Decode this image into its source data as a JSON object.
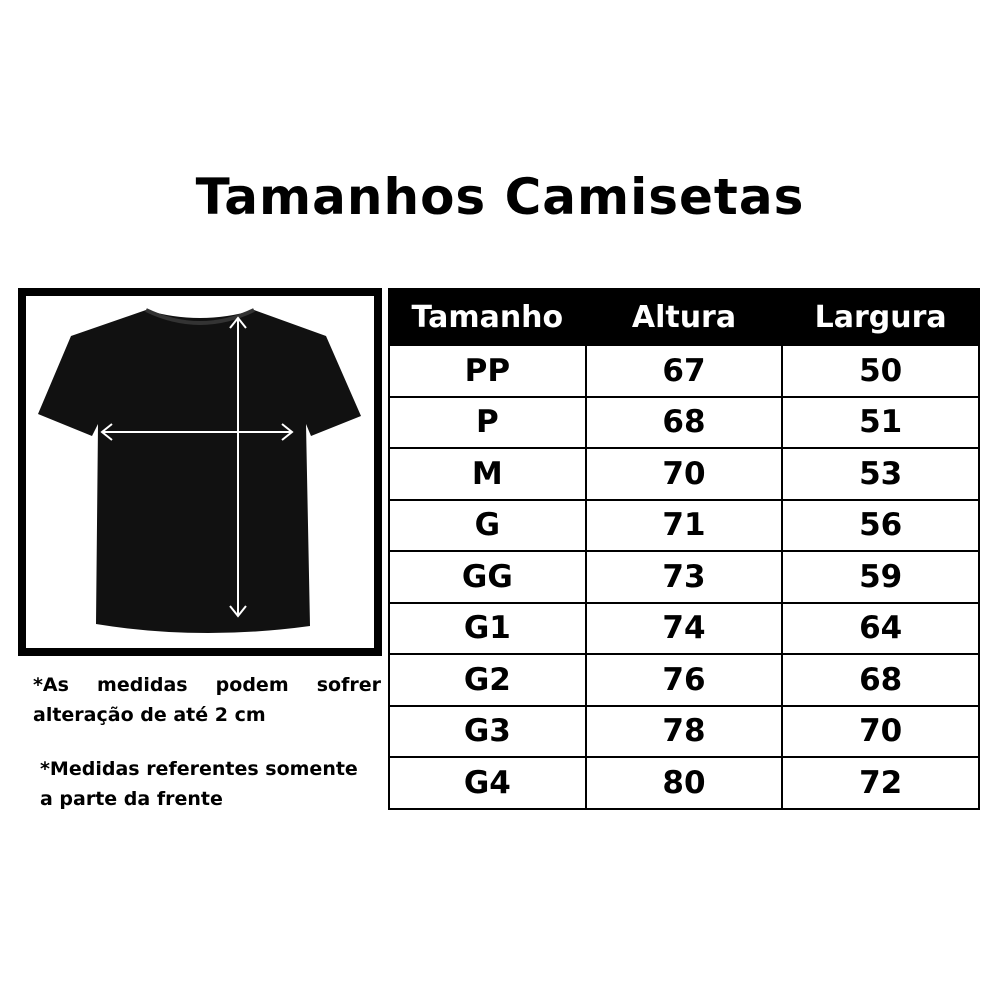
{
  "title": "Tamanhos Camisetas",
  "notes": {
    "note1_line1": [
      "*As",
      "medidas",
      "podem",
      "sofrer"
    ],
    "note1_line2": "alteração de até 2 cm",
    "note2_line1": "*Medidas referentes somente",
    "note2_line2": "a parte da frente"
  },
  "table": {
    "headers": [
      "Tamanho",
      "Altura",
      "Largura"
    ],
    "rows": [
      [
        "PP",
        "67",
        "50"
      ],
      [
        "P",
        "68",
        "51"
      ],
      [
        "M",
        "70",
        "53"
      ],
      [
        "G",
        "71",
        "56"
      ],
      [
        "GG",
        "73",
        "59"
      ],
      [
        "G1",
        "74",
        "64"
      ],
      [
        "G2",
        "76",
        "68"
      ],
      [
        "G3",
        "78",
        "70"
      ],
      [
        "G4",
        "80",
        "72"
      ]
    ]
  }
}
